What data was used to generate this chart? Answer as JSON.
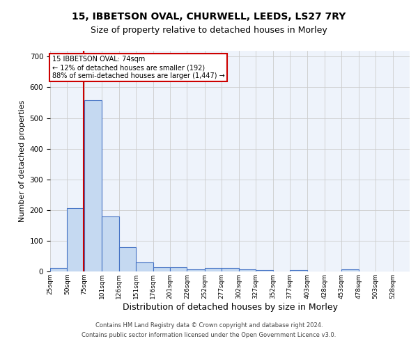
{
  "title1": "15, IBBETSON OVAL, CHURWELL, LEEDS, LS27 7RY",
  "title2": "Size of property relative to detached houses in Morley",
  "xlabel": "Distribution of detached houses by size in Morley",
  "ylabel": "Number of detached properties",
  "footnote1": "Contains HM Land Registry data © Crown copyright and database right 2024.",
  "footnote2": "Contains public sector information licensed under the Open Government Licence v3.0.",
  "annotation_line1": "15 IBBETSON OVAL: 74sqm",
  "annotation_line2": "← 12% of detached houses are smaller (192)",
  "annotation_line3": "88% of semi-detached houses are larger (1,447) →",
  "bar_edges": [
    25,
    50,
    75,
    101,
    126,
    151,
    176,
    201,
    226,
    252,
    277,
    302,
    327,
    352,
    377,
    403,
    428,
    453,
    478,
    503,
    528,
    553
  ],
  "bar_heights": [
    12,
    207,
    557,
    180,
    80,
    30,
    14,
    14,
    7,
    11,
    11,
    7,
    5,
    0,
    5,
    0,
    0,
    7,
    0,
    0,
    0,
    0
  ],
  "bar_color": "#c5d9f1",
  "bar_edge_color": "#4472c4",
  "bar_linewidth": 0.8,
  "red_line_x": 74,
  "red_line_color": "#cc0000",
  "grid_color": "#cccccc",
  "bg_color": "#eef3fb",
  "annotation_box_color": "#ffffff",
  "annotation_box_edge": "#cc0000",
  "ylim": [
    0,
    720
  ],
  "yticks": [
    0,
    100,
    200,
    300,
    400,
    500,
    600,
    700
  ],
  "title1_fontsize": 10,
  "title2_fontsize": 9,
  "xlabel_fontsize": 9,
  "ylabel_fontsize": 8,
  "tick_label_fontsize": 6.5,
  "tick_labels": [
    "25sqm",
    "50sqm",
    "75sqm",
    "101sqm",
    "126sqm",
    "151sqm",
    "176sqm",
    "201sqm",
    "226sqm",
    "252sqm",
    "277sqm",
    "302sqm",
    "327sqm",
    "352sqm",
    "377sqm",
    "403sqm",
    "428sqm",
    "453sqm",
    "478sqm",
    "503sqm",
    "528sqm"
  ]
}
